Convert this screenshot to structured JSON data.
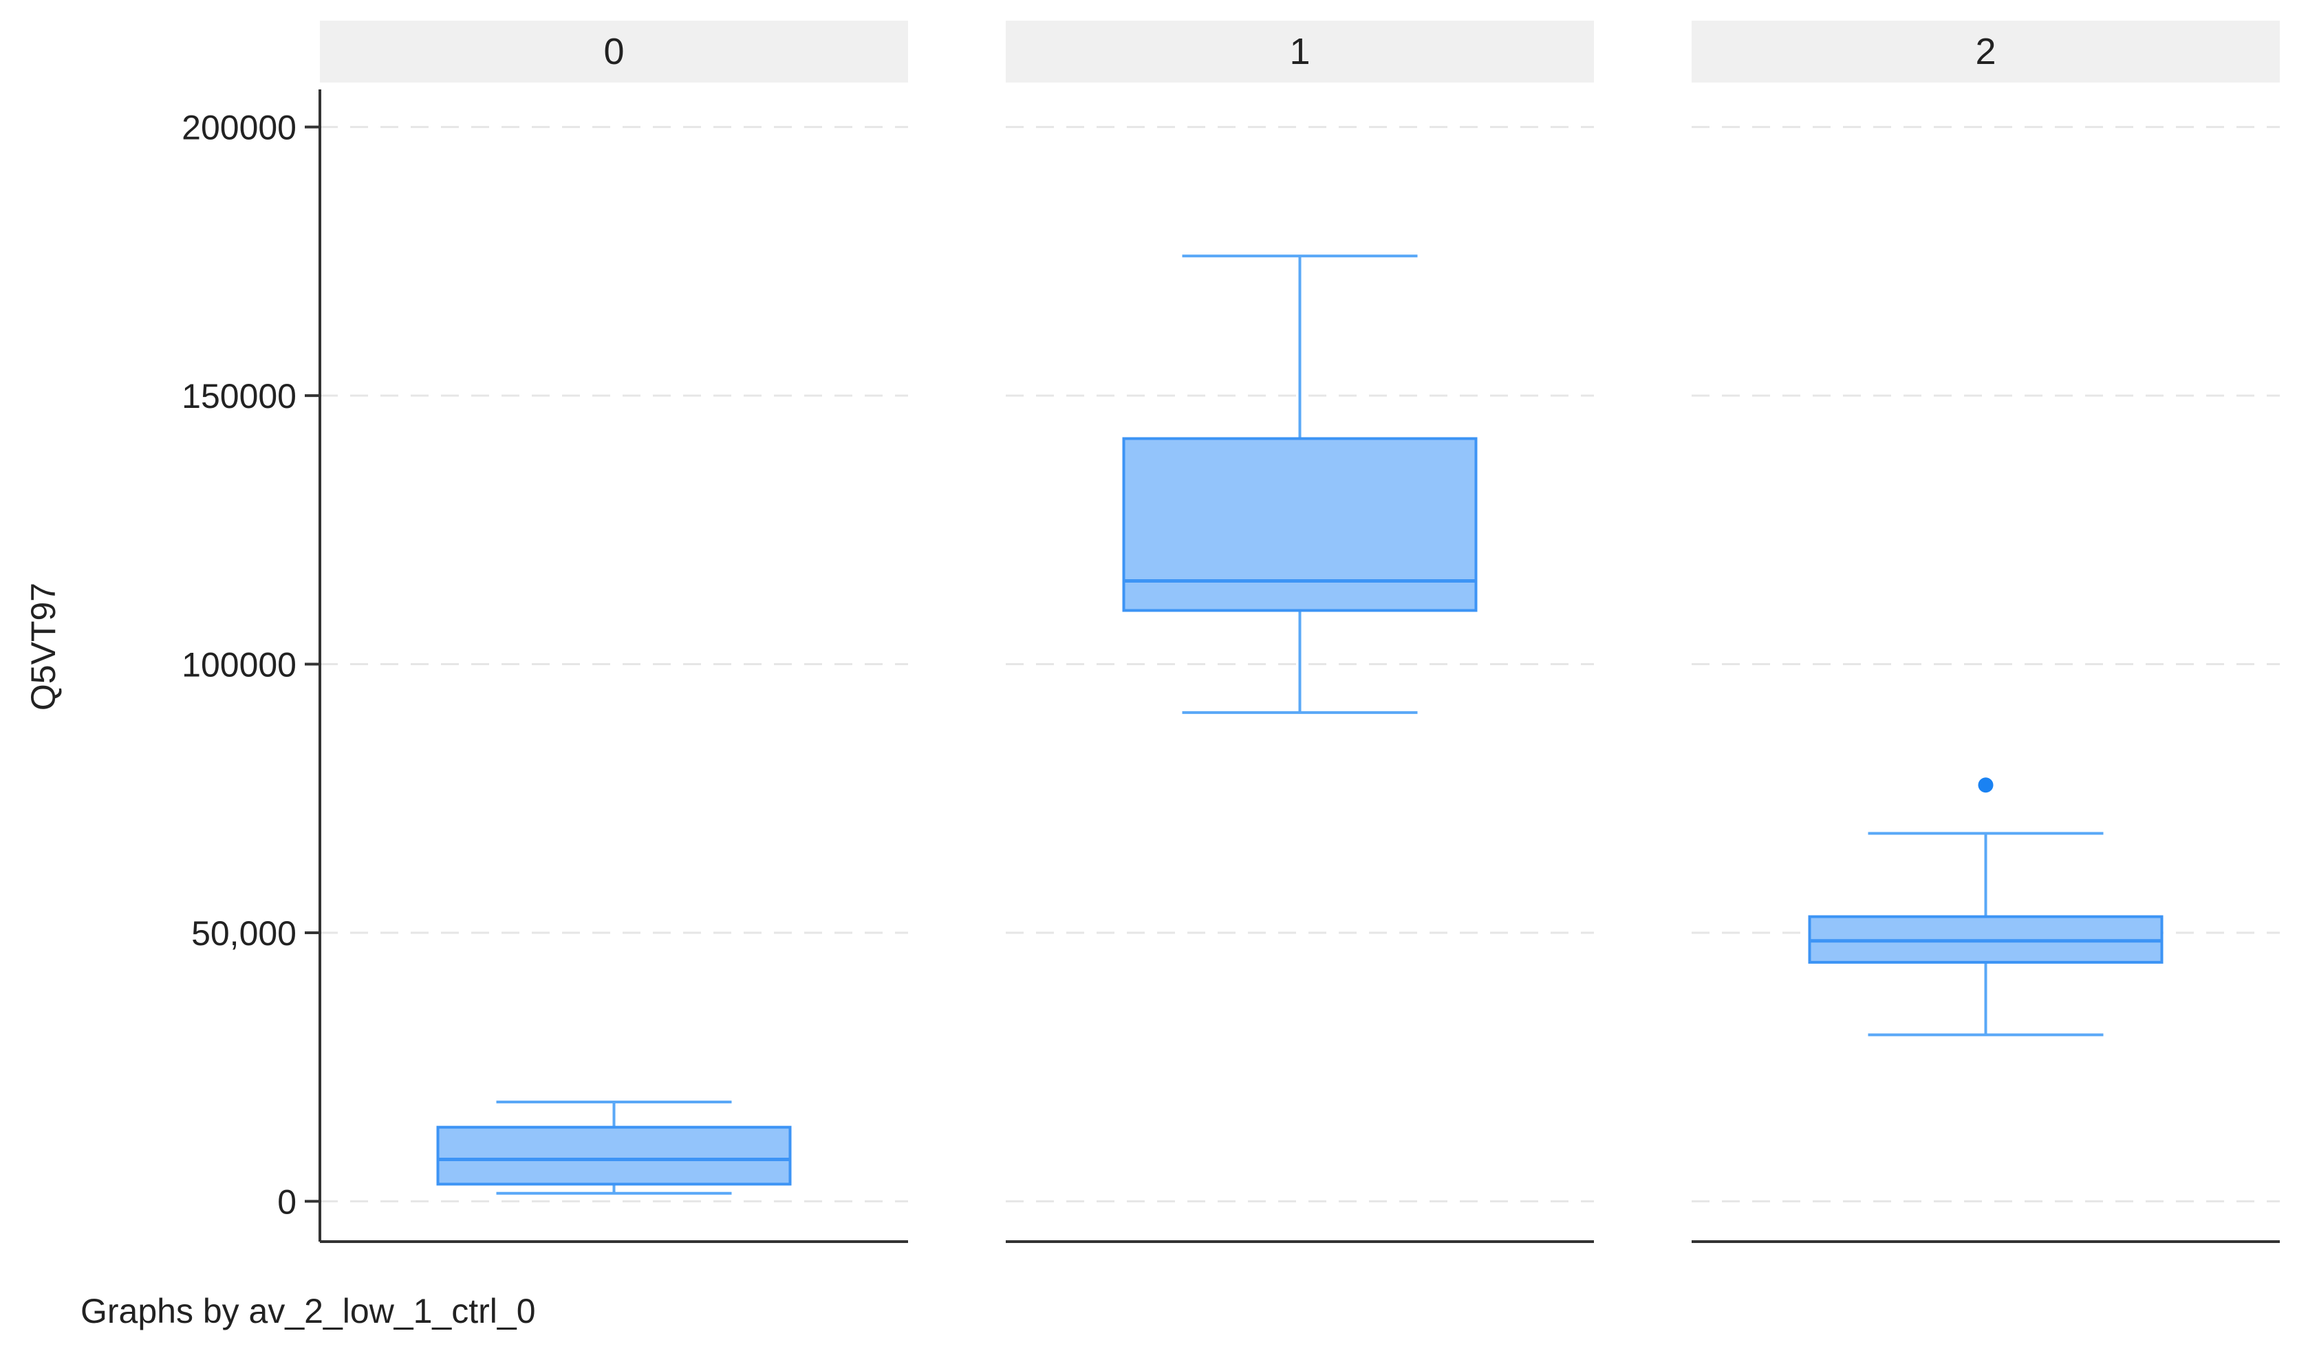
{
  "chart_data": {
    "type": "box",
    "ylabel": "Q5VT97",
    "ylim": [
      -7500,
      207000
    ],
    "y_ticks": [
      {
        "value": 0,
        "label": "0"
      },
      {
        "value": 50000,
        "label": "50,000"
      },
      {
        "value": 100000,
        "label": "100000"
      },
      {
        "value": 150000,
        "label": "150000"
      },
      {
        "value": 200000,
        "label": "200000"
      }
    ],
    "grid": true,
    "note": "Graphs by av_2_low_1_ctrl_0",
    "colors": {
      "box_fill": "#93c4fb",
      "box_stroke": "#3d94f5",
      "whisker": "#5aa8f7",
      "outlier": "#1a82f2",
      "strip_bg": "#f0f0f0",
      "grid": "#e6e6e6",
      "axis": "#333333"
    },
    "panels": [
      {
        "label": "0",
        "whisker_low": 1500,
        "q1": 3200,
        "median": 7800,
        "q3": 13800,
        "whisker_high": 18500,
        "outliers": []
      },
      {
        "label": "1",
        "whisker_low": 91000,
        "q1": 110000,
        "median": 115500,
        "q3": 142000,
        "whisker_high": 176000,
        "outliers": []
      },
      {
        "label": "2",
        "whisker_low": 31000,
        "q1": 44500,
        "median": 48500,
        "q3": 53000,
        "whisker_high": 68500,
        "outliers": [
          77500
        ]
      }
    ]
  }
}
